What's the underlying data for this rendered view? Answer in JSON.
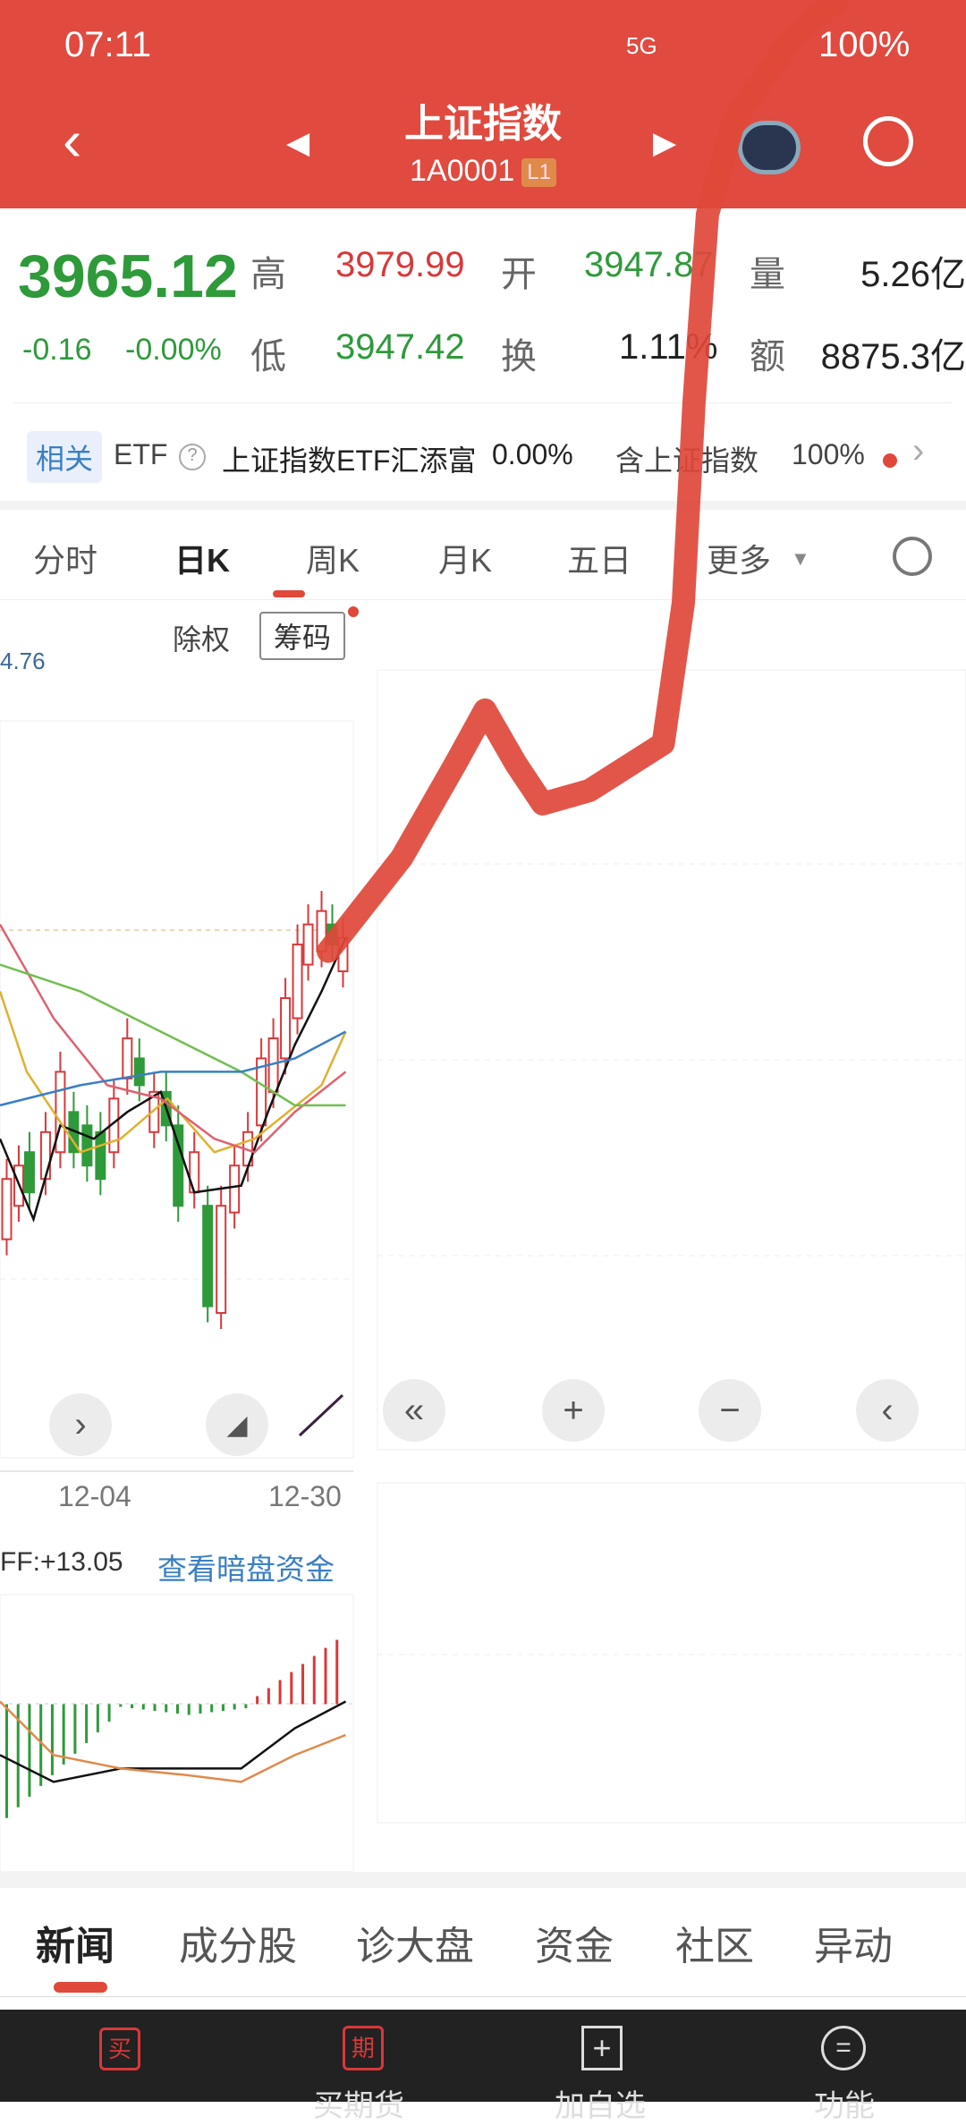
{
  "status_bar": {
    "time": "07:11",
    "battery": "100%",
    "network": "5G"
  },
  "header": {
    "title": "上证指数",
    "code": "1A0001",
    "level_badge": "L1"
  },
  "quote": {
    "price": "3965.12",
    "change": "-0.16",
    "change_pct": "-0.00%",
    "high_label": "高",
    "high": "3979.99",
    "open_label": "开",
    "open": "3947.87",
    "volume_label": "量",
    "volume": "5.26亿",
    "low_label": "低",
    "low": "3947.42",
    "turnover_label": "换",
    "turnover": "1.11%",
    "amount_label": "额",
    "amount": "8875.3亿"
  },
  "etf_row": {
    "tag": "相关",
    "etf": "ETF",
    "name": "上证指数ETF汇添富",
    "pct": "0.00%",
    "contains": "含上证指数",
    "weight": "100%"
  },
  "chart_tabs": [
    {
      "label": "分时"
    },
    {
      "label": "日K",
      "active": true
    },
    {
      "label": "周K"
    },
    {
      "label": "月K"
    },
    {
      "label": "五日"
    },
    {
      "label": "更多"
    }
  ],
  "chart": {
    "adjust": "除权",
    "chips": "筹码",
    "price_label": "4.76",
    "dates": [
      "12-04",
      "12-30"
    ],
    "macd_label": "FF:+13.05",
    "dark_pool_link": "查看暗盘资金"
  },
  "news_tabs": [
    {
      "label": "新闻",
      "active": true
    },
    {
      "label": "成分股"
    },
    {
      "label": "诊大盘"
    },
    {
      "label": "资金"
    },
    {
      "label": "社区"
    },
    {
      "label": "异动"
    }
  ],
  "bottom_nav": [
    {
      "icon": "买",
      "label": ""
    },
    {
      "icon": "期",
      "label": "买期货"
    },
    {
      "icon": "+",
      "label": "加自选"
    },
    {
      "icon": "=",
      "label": "功能"
    }
  ],
  "colors": {
    "header": "#e04a3f",
    "up": "#d9383a",
    "down": "#2e9a3a",
    "link": "#3a7fc4",
    "annotation": "#e0483a"
  }
}
